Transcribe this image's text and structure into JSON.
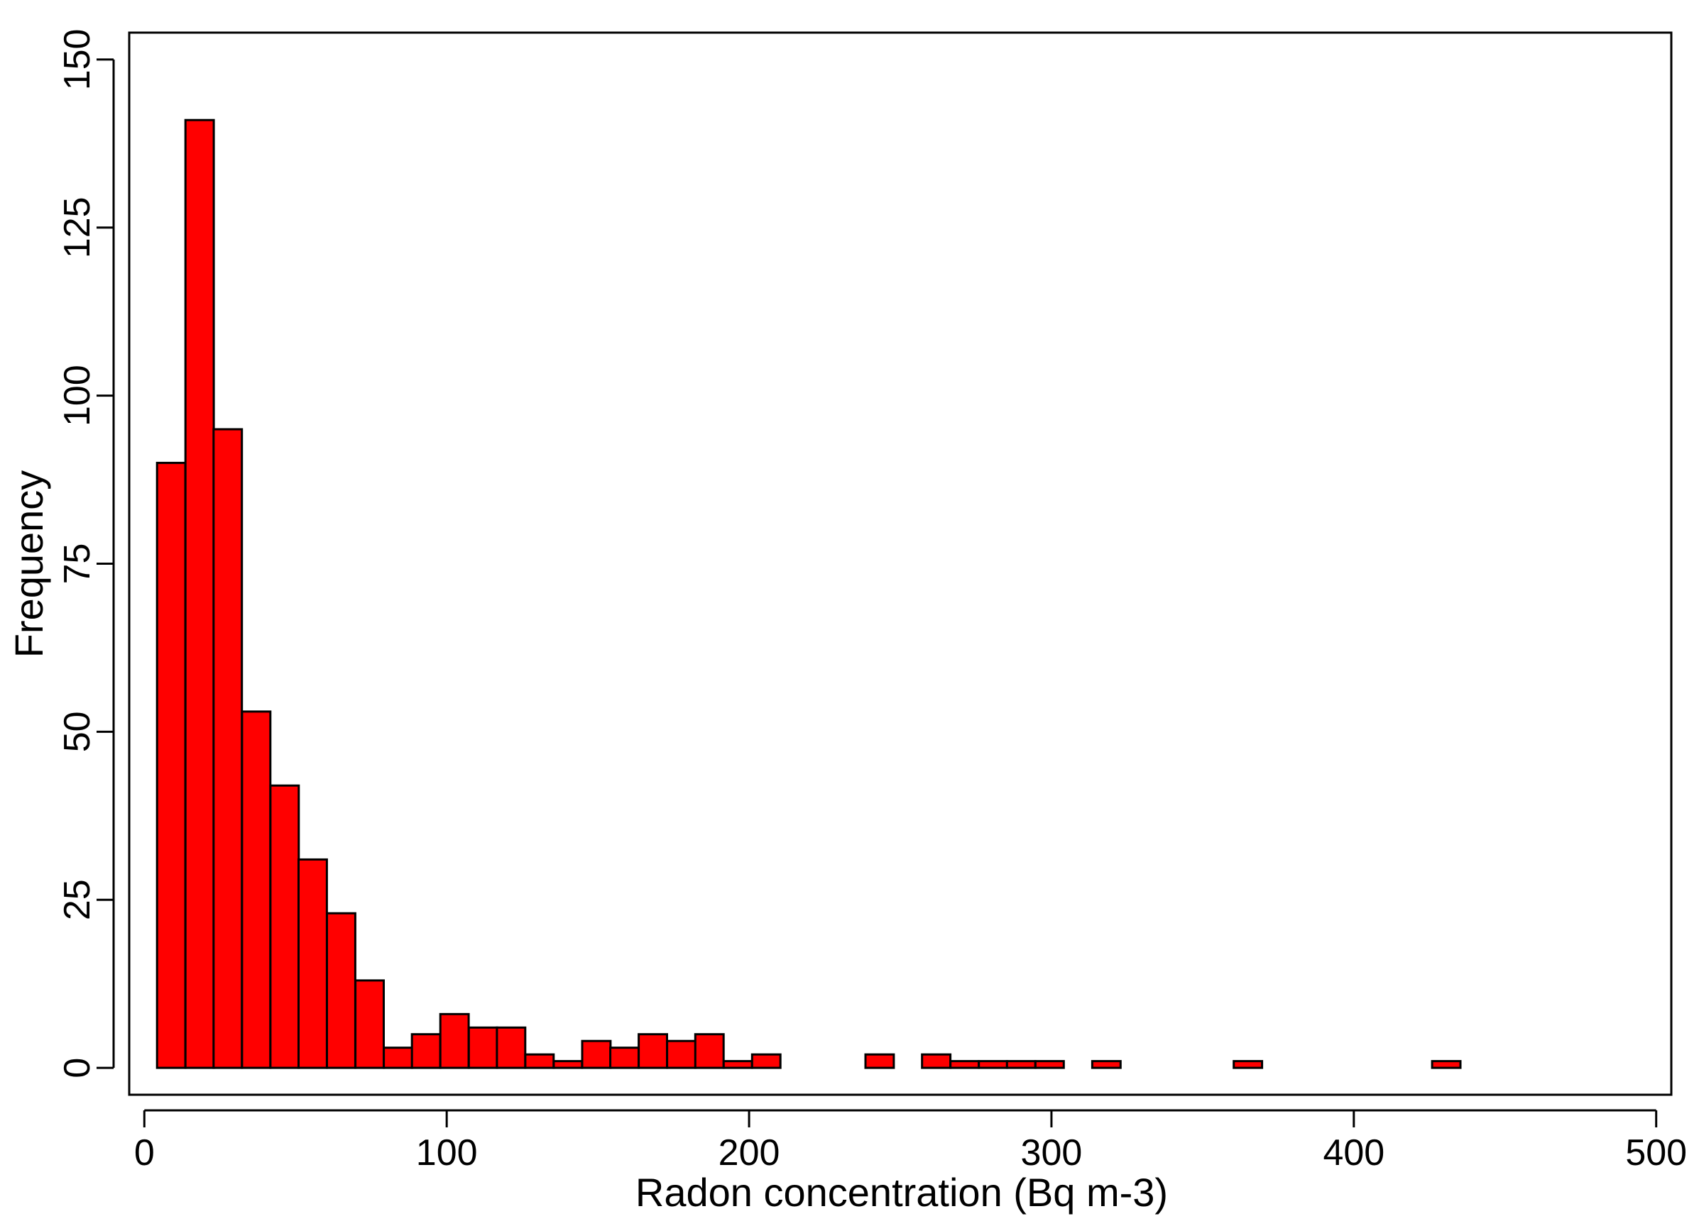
{
  "chart_data": {
    "type": "bar",
    "title": "",
    "xlabel": "Radon concentration (Bq m-3)",
    "ylabel": "Frequency",
    "xlim": [
      -5,
      505
    ],
    "ylim": [
      -4,
      154
    ],
    "xticks": [
      0,
      100,
      200,
      300,
      400,
      500
    ],
    "yticks": [
      0,
      25,
      50,
      75,
      100,
      125,
      150
    ],
    "bin_width": 9.375,
    "bins": [
      {
        "start": 4.2,
        "count": 90
      },
      {
        "start": 13.6,
        "count": 141
      },
      {
        "start": 22.9,
        "count": 95
      },
      {
        "start": 32.3,
        "count": 53
      },
      {
        "start": 41.7,
        "count": 42
      },
      {
        "start": 51.0,
        "count": 31
      },
      {
        "start": 60.4,
        "count": 23
      },
      {
        "start": 69.8,
        "count": 13
      },
      {
        "start": 79.2,
        "count": 3
      },
      {
        "start": 88.5,
        "count": 5
      },
      {
        "start": 97.9,
        "count": 8
      },
      {
        "start": 107.3,
        "count": 6
      },
      {
        "start": 116.6,
        "count": 6
      },
      {
        "start": 126.0,
        "count": 2
      },
      {
        "start": 135.4,
        "count": 1
      },
      {
        "start": 144.8,
        "count": 4
      },
      {
        "start": 154.1,
        "count": 3
      },
      {
        "start": 163.5,
        "count": 5
      },
      {
        "start": 172.9,
        "count": 4
      },
      {
        "start": 182.2,
        "count": 5
      },
      {
        "start": 191.6,
        "count": 1
      },
      {
        "start": 201.0,
        "count": 2
      },
      {
        "start": 238.5,
        "count": 2
      },
      {
        "start": 257.2,
        "count": 2
      },
      {
        "start": 266.6,
        "count": 1
      },
      {
        "start": 276.0,
        "count": 1
      },
      {
        "start": 285.3,
        "count": 1
      },
      {
        "start": 294.7,
        "count": 1
      },
      {
        "start": 313.5,
        "count": 1
      },
      {
        "start": 360.3,
        "count": 1
      },
      {
        "start": 425.9,
        "count": 1
      }
    ],
    "bar_color": "#ff0000",
    "bar_edge_color": "#000000",
    "grid": false,
    "legend": "none"
  }
}
